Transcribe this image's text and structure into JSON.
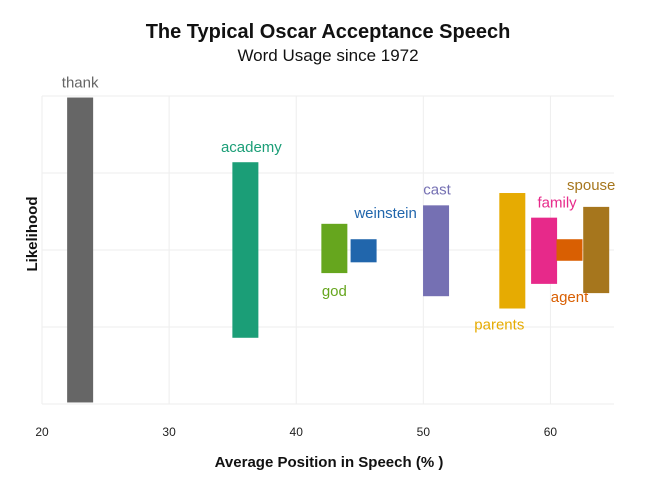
{
  "chart_data": {
    "type": "bar",
    "title": "The Typical Oscar Acceptance Speech",
    "subtitle": "Word Usage since 1972",
    "xlabel": "Average Position in Speech (% )",
    "ylabel": "Likelihood",
    "xlim": [
      20,
      65
    ],
    "ylim": [
      0,
      100
    ],
    "xticks": [
      20,
      30,
      40,
      50,
      60
    ],
    "grid": true,
    "words": [
      {
        "name": "thank",
        "x": 23.0,
        "ymin": 0.5,
        "ymax": 99.5,
        "color": "#666666",
        "label_pos": "above"
      },
      {
        "name": "academy",
        "x": 36.0,
        "ymin": 21.5,
        "ymax": 78.5,
        "color": "#1b9e77",
        "label_pos": "above"
      },
      {
        "name": "god",
        "x": 43.0,
        "ymin": 42.5,
        "ymax": 58.5,
        "color": "#66a61e",
        "label_pos": "below"
      },
      {
        "name": "weinstein",
        "x": 45.3,
        "ymin": 46.0,
        "ymax": 53.5,
        "color": "#2166ac",
        "label_pos": "above"
      },
      {
        "name": "cast",
        "x": 51.0,
        "ymin": 35.0,
        "ymax": 64.5,
        "color": "#7570b3",
        "label_pos": "above"
      },
      {
        "name": "parents",
        "x": 57.0,
        "ymin": 31.0,
        "ymax": 68.5,
        "color": "#e6ab02",
        "label_pos": "below"
      },
      {
        "name": "family",
        "x": 59.5,
        "ymin": 39.0,
        "ymax": 60.5,
        "color": "#e7298a",
        "label_pos": "above"
      },
      {
        "name": "agent",
        "x": 61.5,
        "ymin": 46.5,
        "ymax": 53.5,
        "color": "#d95f02",
        "label_pos": "below"
      },
      {
        "name": "spouse",
        "x": 63.6,
        "ymin": 36.0,
        "ymax": 64.0,
        "color": "#a6761d",
        "label_pos": "above"
      }
    ]
  }
}
